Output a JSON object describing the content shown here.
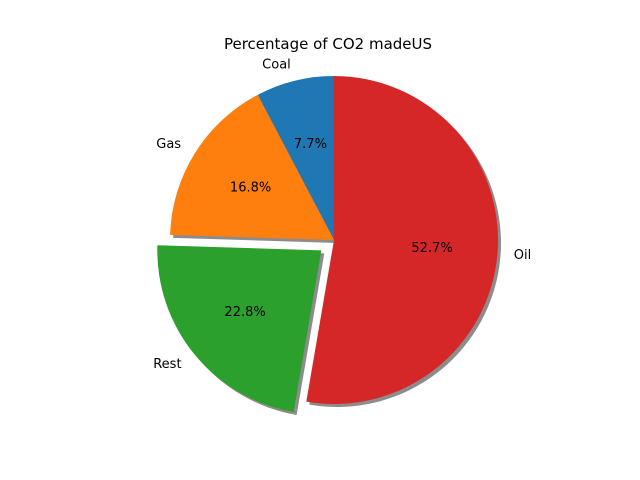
{
  "chart_data": {
    "type": "pie",
    "title": "Percentage of CO2 madeUS",
    "categories": [
      "Coal",
      "Gas",
      "Rest",
      "Oil"
    ],
    "values": [
      7.7,
      16.8,
      22.8,
      52.7
    ],
    "percent_labels": [
      "7.7%",
      "16.8%",
      "22.8%",
      "52.7%"
    ],
    "colors": [
      "#1f77b4",
      "#ff7f0e",
      "#2ca02c",
      "#d62728"
    ],
    "exploded": [
      "Rest"
    ],
    "shadow": true,
    "start_angle_deg": 90,
    "direction": "counterclockwise"
  }
}
